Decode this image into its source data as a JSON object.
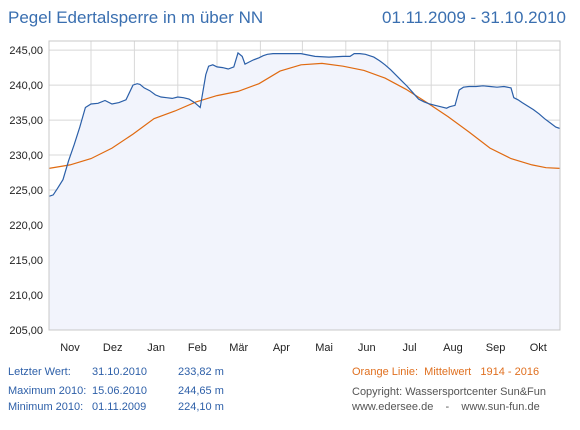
{
  "header": {
    "title": "Pegel Edertalsperre in m über NN",
    "daterange": "01.11.2009 - 31.10.2010"
  },
  "stats": {
    "letzter": {
      "label": "Letzter Wert:",
      "date": "31.10.2010",
      "value": "233,82 m"
    },
    "maximum": {
      "label": "Maximum 2010:",
      "date": "15.06.2010",
      "value": "244,65 m"
    },
    "minimum": {
      "label": "Minimum  2010:",
      "date": "01.11.2009",
      "value": "224,10 m"
    }
  },
  "legend": {
    "orange_label": "Orange Linie:",
    "orange_desc": "Mittelwert",
    "orange_years": "1914 - 2016"
  },
  "credits": {
    "copyright": "Copyright: Wassersportcenter Sun&Fun",
    "websites": "www.edersee.de    -    www.sun-fun.de"
  },
  "colors": {
    "level_line": "#2b5fa8",
    "area_fill": "#f2f4fc",
    "mean_line": "#e06a10",
    "grid": "#d8d8d8",
    "text_blue": "#3a6fb0"
  },
  "chart_data": {
    "type": "line",
    "ylim": [
      205,
      246.3
    ],
    "xlim": [
      0,
      365
    ],
    "y_ticks": [
      "205,00",
      "210,00",
      "215,00",
      "220,00",
      "225,00",
      "230,00",
      "235,00",
      "240,00",
      "245,00"
    ],
    "y_tick_values": [
      205,
      210,
      215,
      220,
      225,
      230,
      235,
      240,
      245
    ],
    "months": [
      {
        "label": "Nov",
        "center": 15
      },
      {
        "label": "Dez",
        "center": 45.5
      },
      {
        "label": "Jan",
        "center": 76.5
      },
      {
        "label": "Feb",
        "center": 106
      },
      {
        "label": "Mär",
        "center": 135.5
      },
      {
        "label": "Apr",
        "center": 166
      },
      {
        "label": "Mai",
        "center": 196.5
      },
      {
        "label": "Jun",
        "center": 227
      },
      {
        "label": "Jul",
        "center": 257.5
      },
      {
        "label": "Aug",
        "center": 288.5
      },
      {
        "label": "Sep",
        "center": 319
      },
      {
        "label": "Okt",
        "center": 349.5
      }
    ],
    "month_boundaries": [
      30,
      61,
      92,
      120,
      151,
      181,
      212,
      242,
      273,
      304,
      334
    ],
    "series": [
      {
        "name": "Pegel",
        "x": [
          0,
          3,
          6,
          10,
          14,
          18,
          22,
          26,
          30,
          35,
          40,
          45,
          50,
          55,
          60,
          63,
          65,
          68,
          72,
          76,
          80,
          84,
          88,
          92,
          96,
          100,
          104,
          108,
          112,
          114,
          117,
          120,
          124,
          128,
          132,
          135,
          138,
          140,
          143,
          146,
          150,
          153,
          156,
          160,
          170,
          180,
          190,
          200,
          210,
          215,
          218,
          222,
          226,
          232,
          236,
          240,
          244,
          248,
          252,
          256,
          260,
          264,
          268,
          272,
          276,
          280,
          284,
          286,
          288,
          290,
          293,
          296,
          300,
          305,
          310,
          315,
          320,
          325,
          330,
          332,
          335,
          338,
          342,
          346,
          350,
          354,
          358,
          362,
          365
        ],
        "y": [
          224.1,
          224.3,
          225.2,
          226.5,
          229.2,
          231.5,
          234.0,
          236.8,
          237.3,
          237.4,
          237.8,
          237.3,
          237.5,
          237.9,
          240.0,
          240.2,
          240.1,
          239.6,
          239.2,
          238.6,
          238.3,
          238.2,
          238.1,
          238.3,
          238.2,
          238.0,
          237.5,
          236.8,
          241.5,
          242.7,
          242.9,
          242.6,
          242.5,
          242.3,
          242.6,
          244.6,
          244.1,
          243.0,
          243.3,
          243.6,
          243.9,
          244.2,
          244.4,
          244.5,
          244.5,
          244.5,
          244.1,
          244.0,
          244.1,
          244.1,
          244.5,
          244.5,
          244.4,
          244.0,
          243.5,
          242.9,
          242.2,
          241.4,
          240.6,
          239.8,
          238.9,
          238.0,
          237.6,
          237.3,
          237.1,
          236.9,
          236.7,
          236.9,
          237.0,
          237.1,
          239.3,
          239.7,
          239.8,
          239.8,
          239.9,
          239.8,
          239.7,
          239.8,
          239.6,
          238.2,
          237.9,
          237.5,
          237.0,
          236.5,
          235.9,
          235.2,
          234.6,
          234.0,
          233.8
        ]
      },
      {
        "name": "Mittelwert 1914 - 2016",
        "x": [
          0,
          15,
          30,
          45,
          60,
          75,
          90,
          105,
          120,
          135,
          150,
          165,
          180,
          195,
          210,
          225,
          240,
          255,
          270,
          285,
          300,
          315,
          330,
          345,
          355,
          365
        ],
        "y": [
          228.1,
          228.6,
          229.5,
          231.0,
          233.0,
          235.2,
          236.3,
          237.6,
          238.5,
          239.1,
          240.2,
          242.0,
          242.9,
          243.1,
          242.7,
          242.1,
          241.0,
          239.4,
          237.5,
          235.5,
          233.3,
          231.0,
          229.5,
          228.6,
          228.2,
          228.1
        ]
      }
    ]
  }
}
